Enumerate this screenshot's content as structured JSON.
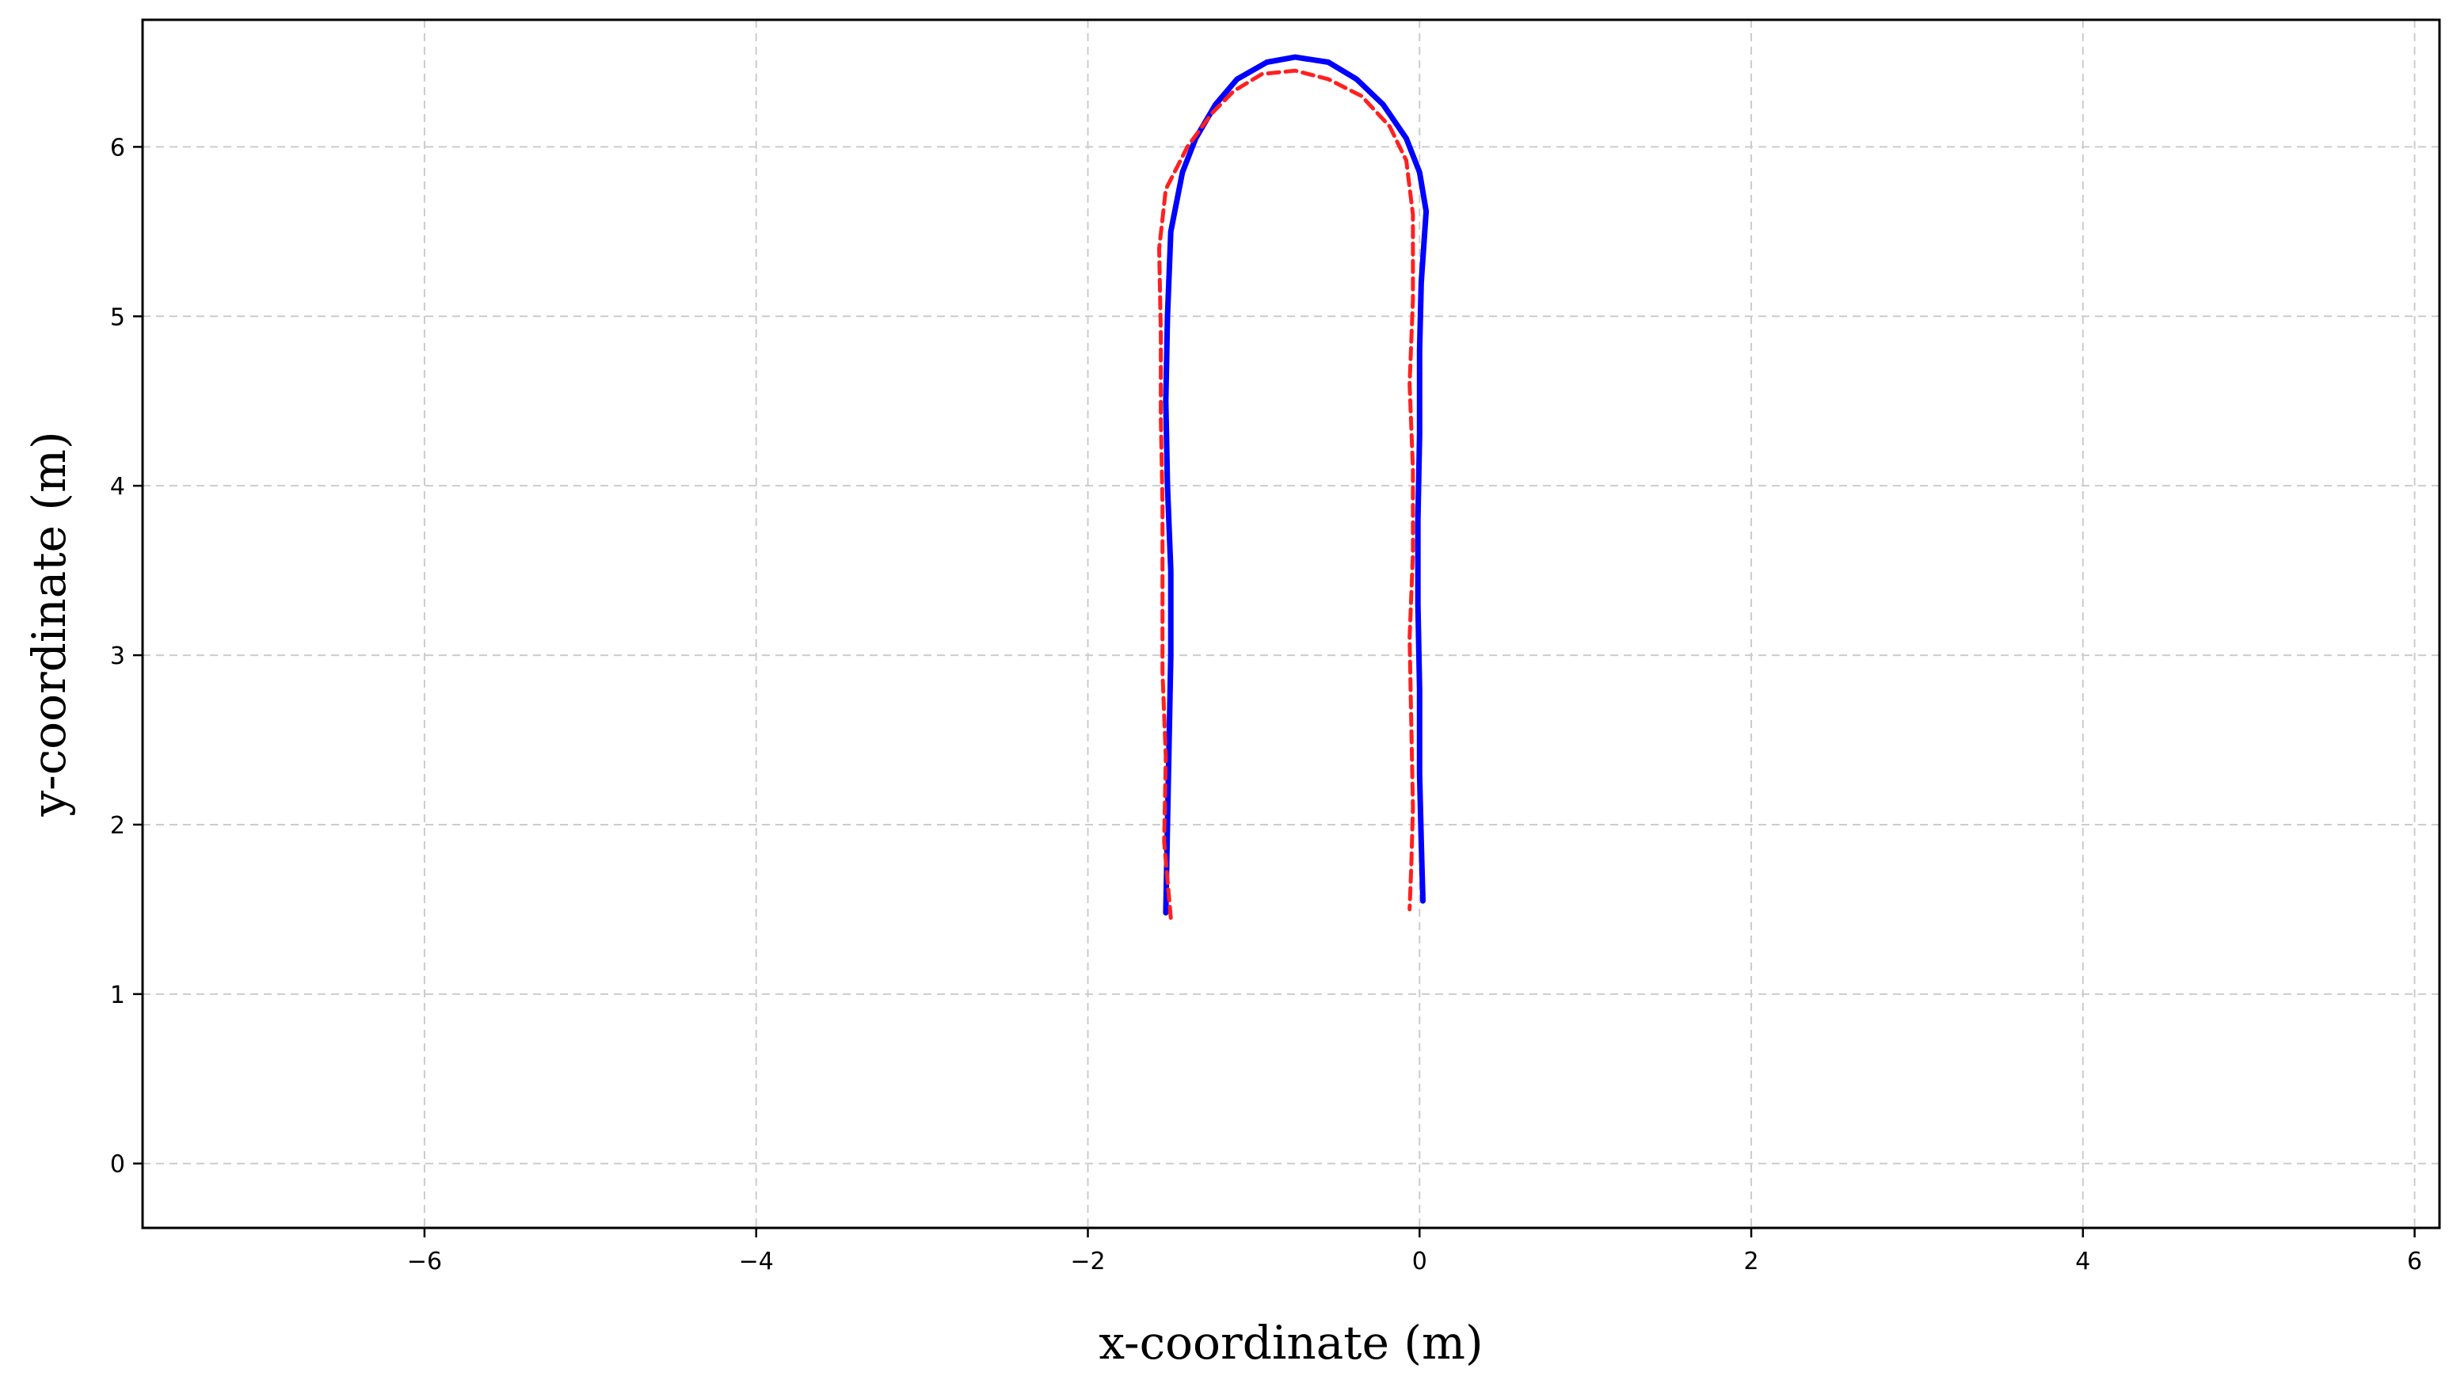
{
  "chart_data": {
    "type": "line",
    "title": "",
    "xlabel": "x-coordinate (m)",
    "ylabel": "y-coordinate (m)",
    "xlim": [
      -7.7,
      6.15
    ],
    "ylim": [
      -0.38,
      6.75
    ],
    "grid": true,
    "legend": "none",
    "x_ticks": [
      "-6",
      "-4",
      "-2",
      "0",
      "2",
      "4",
      "6"
    ],
    "y_ticks": [
      "0",
      "1",
      "2",
      "3",
      "4",
      "5",
      "6"
    ],
    "series": [
      {
        "color": "#0000ff",
        "style": "solid",
        "points": [
          [
            -1.53,
            1.48
          ],
          [
            -1.52,
            2.0
          ],
          [
            -1.51,
            2.5
          ],
          [
            -1.5,
            3.0
          ],
          [
            -1.5,
            3.5
          ],
          [
            -1.52,
            4.0
          ],
          [
            -1.53,
            4.5
          ],
          [
            -1.52,
            5.0
          ],
          [
            -1.5,
            5.5
          ],
          [
            -1.43,
            5.85
          ],
          [
            -1.35,
            6.05
          ],
          [
            -1.23,
            6.25
          ],
          [
            -1.1,
            6.4
          ],
          [
            -0.92,
            6.5
          ],
          [
            -0.75,
            6.53
          ],
          [
            -0.55,
            6.5
          ],
          [
            -0.38,
            6.4
          ],
          [
            -0.22,
            6.25
          ],
          [
            -0.08,
            6.05
          ],
          [
            0.0,
            5.85
          ],
          [
            0.04,
            5.62
          ],
          [
            0.01,
            5.2
          ],
          [
            0.0,
            4.8
          ],
          [
            0.0,
            4.3
          ],
          [
            -0.01,
            3.8
          ],
          [
            -0.01,
            3.3
          ],
          [
            0.0,
            2.8
          ],
          [
            0.0,
            2.3
          ],
          [
            0.01,
            1.9
          ],
          [
            0.02,
            1.55
          ]
        ]
      },
      {
        "color": "#ff2020",
        "style": "dashed",
        "points": [
          [
            -1.5,
            1.45
          ],
          [
            -1.54,
            1.9
          ],
          [
            -1.53,
            2.4
          ],
          [
            -1.55,
            2.9
          ],
          [
            -1.55,
            3.4
          ],
          [
            -1.55,
            3.9
          ],
          [
            -1.56,
            4.4
          ],
          [
            -1.56,
            4.9
          ],
          [
            -1.57,
            5.4
          ],
          [
            -1.53,
            5.75
          ],
          [
            -1.4,
            6.0
          ],
          [
            -1.25,
            6.2
          ],
          [
            -1.12,
            6.33
          ],
          [
            -0.95,
            6.43
          ],
          [
            -0.75,
            6.45
          ],
          [
            -0.55,
            6.4
          ],
          [
            -0.35,
            6.3
          ],
          [
            -0.18,
            6.12
          ],
          [
            -0.08,
            5.92
          ],
          [
            -0.04,
            5.6
          ],
          [
            -0.04,
            5.1
          ],
          [
            -0.06,
            4.6
          ],
          [
            -0.04,
            4.1
          ],
          [
            -0.04,
            3.6
          ],
          [
            -0.06,
            3.1
          ],
          [
            -0.05,
            2.6
          ],
          [
            -0.04,
            2.1
          ],
          [
            -0.05,
            1.75
          ],
          [
            -0.06,
            1.5
          ]
        ]
      }
    ]
  }
}
